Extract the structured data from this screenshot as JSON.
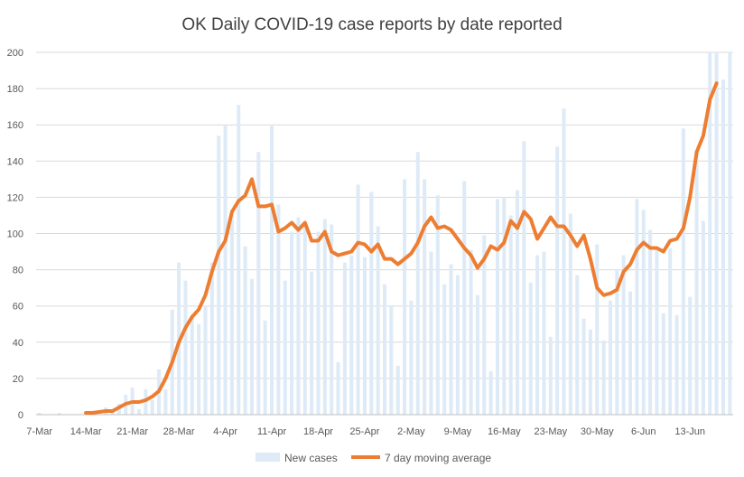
{
  "chart_data": {
    "type": "bar+line",
    "title": "OK Daily COVID-19 case reports by date reported",
    "xlabel": "",
    "ylabel": "",
    "ylim": [
      0,
      200
    ],
    "y_ticks": [
      "0",
      "20",
      "40",
      "60",
      "80",
      "100",
      "120",
      "140",
      "160",
      "180",
      "200"
    ],
    "y_tick_values": [
      0,
      20,
      40,
      60,
      80,
      100,
      120,
      140,
      160,
      180,
      200
    ],
    "x_tick_labels": [
      "7-Mar",
      "14-Mar",
      "21-Mar",
      "28-Mar",
      "4-Apr",
      "11-Apr",
      "18-Apr",
      "25-Apr",
      "2-May",
      "9-May",
      "16-May",
      "23-May",
      "30-May",
      "6-Jun",
      "13-Jun"
    ],
    "x_tick_day_index": [
      0,
      7,
      14,
      21,
      28,
      35,
      42,
      49,
      56,
      63,
      70,
      77,
      84,
      91,
      98
    ],
    "grid": true,
    "legend_position": "bottom",
    "colors": {
      "bars": "#deebf7",
      "line": "#ed7d31",
      "grid": "#d9d9d9",
      "axis": "#bfbfbf"
    },
    "series": [
      {
        "name": "New cases",
        "kind": "bar",
        "values": [
          1,
          0,
          0,
          1,
          0,
          0,
          0,
          0,
          2,
          0,
          4,
          2,
          6,
          11,
          15,
          3,
          14,
          8,
          25,
          14,
          58,
          84,
          74,
          55,
          50,
          60,
          84,
          154,
          160,
          110,
          171,
          93,
          75,
          145,
          52,
          160,
          116,
          74,
          101,
          109,
          104,
          79,
          101,
          108,
          105,
          29,
          84,
          88,
          127,
          87,
          123,
          104,
          72,
          60,
          27,
          130,
          63,
          145,
          130,
          90,
          121,
          72,
          83,
          77,
          129,
          91,
          66,
          99,
          24,
          119,
          120,
          110,
          124,
          151,
          73,
          88,
          90,
          43,
          148,
          169,
          111,
          77,
          53,
          47,
          94,
          41,
          63,
          80,
          88,
          68,
          119,
          113,
          102,
          92,
          56,
          92,
          55,
          158,
          65,
          146,
          107,
          200,
          200,
          185,
          200
        ],
        "visible_tail_note": "values above 200 are clipped at the axis maximum"
      },
      {
        "name": "7 day moving average",
        "kind": "line",
        "start_index": 7,
        "values": [
          1,
          1,
          1.5,
          2,
          2,
          4,
          6,
          7,
          7,
          8,
          10,
          13,
          20,
          29,
          40,
          48,
          54,
          58,
          66,
          79,
          90,
          96,
          112,
          118,
          121,
          130,
          115,
          115,
          116,
          101,
          103,
          106,
          102,
          106,
          96,
          96,
          101,
          90,
          88,
          89,
          90,
          95,
          94,
          90,
          94,
          86,
          86,
          83,
          86,
          89,
          95,
          104,
          109,
          103,
          104,
          102,
          97,
          92,
          88,
          81,
          86,
          93,
          91,
          95,
          107,
          103,
          112,
          108,
          97,
          103,
          109,
          104,
          104,
          99,
          93,
          99,
          86,
          70,
          66,
          67,
          69,
          79,
          83,
          91,
          95,
          92,
          92,
          90,
          96,
          97,
          103,
          120,
          145,
          154,
          174,
          183
        ]
      }
    ],
    "legend": [
      "New cases",
      "7 day moving average"
    ]
  }
}
